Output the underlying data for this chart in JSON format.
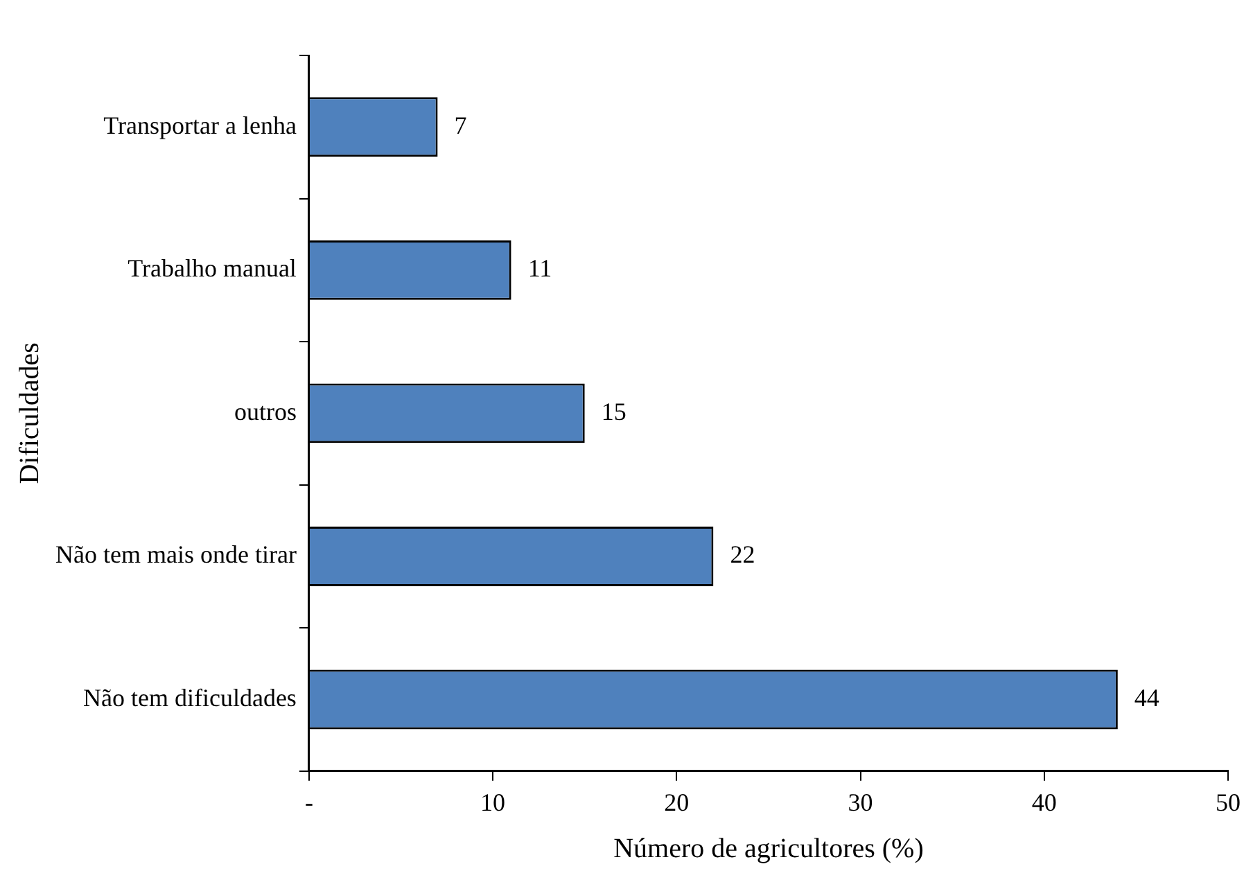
{
  "chart_data": {
    "type": "bar",
    "orientation": "horizontal",
    "xlabel": "Número de agricultores (%)",
    "ylabel": "Dificuldades",
    "categories": [
      "Transportar a lenha",
      "Trabalho manual",
      "outros",
      "Não tem mais onde tirar",
      "Não tem dificuldades"
    ],
    "values": [
      7,
      11,
      15,
      22,
      44
    ],
    "color": "#4f81bd",
    "data_labels": true,
    "xlim": [
      0,
      50
    ],
    "xticks": [
      {
        "value": 0,
        "label": "-"
      },
      10,
      20,
      30,
      40,
      50
    ],
    "grid": false,
    "legend": false
  }
}
